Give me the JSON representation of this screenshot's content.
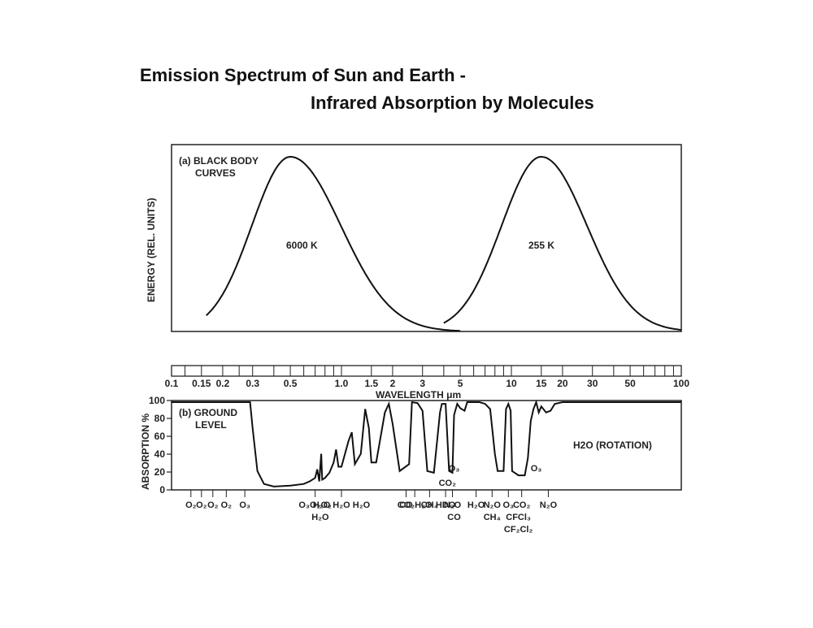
{
  "title_line1": "Emission Spectrum of Sun and Earth  -",
  "title_line2": "Infrared Absorption by Molecules",
  "chart_data": [
    {
      "type": "line",
      "panel_label": "(a) BLACK BODY",
      "panel_label2": "CURVES",
      "ylabel": "ENERGY (REL. UNITS)",
      "xscale": "log",
      "xlim": [
        0.1,
        100
      ],
      "series": [
        {
          "name": "6000 K",
          "peak_wavelength_um": 0.5,
          "peak_value": 1.0
        },
        {
          "name": "255 K",
          "peak_wavelength_um": 15,
          "peak_value": 1.0
        }
      ]
    },
    {
      "type": "line",
      "panel_label": "(b) GROUND",
      "panel_label2": "LEVEL",
      "ylabel": "ABSORPTION %",
      "xlabel": "WAVELENGTH μm",
      "xscale": "log",
      "xlim": [
        0.1,
        100
      ],
      "ylim": [
        0,
        100
      ],
      "yticks": [
        "100",
        "80",
        "60",
        "40",
        "20",
        "0"
      ],
      "xticks": [
        {
          "v": 0.1,
          "t": "0.1"
        },
        {
          "v": 0.15,
          "t": "0.15"
        },
        {
          "v": 0.2,
          "t": "0.2"
        },
        {
          "v": 0.3,
          "t": "0.3"
        },
        {
          "v": 0.5,
          "t": "0.5"
        },
        {
          "v": 1.0,
          "t": "1.0"
        },
        {
          "v": 1.5,
          "t": "1.5"
        },
        {
          "v": 2,
          "t": "2"
        },
        {
          "v": 3,
          "t": "3"
        },
        {
          "v": 5,
          "t": "5"
        },
        {
          "v": 10,
          "t": "10"
        },
        {
          "v": 15,
          "t": "15"
        },
        {
          "v": 20,
          "t": "20"
        },
        {
          "v": 30,
          "t": "30"
        },
        {
          "v": 50,
          "t": "50"
        },
        {
          "v": 100,
          "t": "100"
        }
      ],
      "annotation": "H2O (ROTATION)",
      "absorption_points": [
        [
          0.1,
          100
        ],
        [
          0.29,
          100
        ],
        [
          0.3,
          70
        ],
        [
          0.32,
          20
        ],
        [
          0.35,
          5
        ],
        [
          0.4,
          2
        ],
        [
          0.5,
          3
        ],
        [
          0.6,
          5
        ],
        [
          0.65,
          8
        ],
        [
          0.7,
          12
        ],
        [
          0.72,
          22
        ],
        [
          0.74,
          8
        ],
        [
          0.76,
          40
        ],
        [
          0.77,
          10
        ],
        [
          0.8,
          12
        ],
        [
          0.85,
          18
        ],
        [
          0.9,
          30
        ],
        [
          0.93,
          45
        ],
        [
          0.96,
          25
        ],
        [
          1.0,
          25
        ],
        [
          1.1,
          55
        ],
        [
          1.15,
          65
        ],
        [
          1.2,
          28
        ],
        [
          1.3,
          40
        ],
        [
          1.38,
          92
        ],
        [
          1.45,
          70
        ],
        [
          1.5,
          30
        ],
        [
          1.6,
          30
        ],
        [
          1.8,
          88
        ],
        [
          1.9,
          98
        ],
        [
          2.0,
          75
        ],
        [
          2.2,
          20
        ],
        [
          2.5,
          28
        ],
        [
          2.6,
          100
        ],
        [
          2.8,
          99
        ],
        [
          3.0,
          90
        ],
        [
          3.2,
          20
        ],
        [
          3.5,
          18
        ],
        [
          3.8,
          88
        ],
        [
          3.9,
          98
        ],
        [
          4.1,
          98
        ],
        [
          4.3,
          20
        ],
        [
          4.5,
          18
        ],
        [
          4.6,
          85
        ],
        [
          4.8,
          98
        ],
        [
          5.0,
          93
        ],
        [
          5.3,
          90
        ],
        [
          5.5,
          100
        ],
        [
          6.5,
          100
        ],
        [
          7.0,
          98
        ],
        [
          7.5,
          92
        ],
        [
          8.0,
          40
        ],
        [
          8.3,
          20
        ],
        [
          9.0,
          20
        ],
        [
          9.3,
          92
        ],
        [
          9.6,
          98
        ],
        [
          9.9,
          90
        ],
        [
          10.1,
          20
        ],
        [
          11.0,
          15
        ],
        [
          12.0,
          15
        ],
        [
          12.5,
          35
        ],
        [
          13.0,
          78
        ],
        [
          13.5,
          92
        ],
        [
          14.0,
          100
        ],
        [
          14.5,
          88
        ],
        [
          15.0,
          95
        ],
        [
          16.0,
          88
        ],
        [
          17.0,
          90
        ],
        [
          18.0,
          98
        ],
        [
          20.0,
          100
        ],
        [
          100,
          100
        ]
      ]
    }
  ],
  "molecule_labels": [
    {
      "v": 0.13,
      "t": "O₂"
    },
    {
      "v": 0.15,
      "t": "O₂"
    },
    {
      "v": 0.175,
      "t": "O₂"
    },
    {
      "v": 0.21,
      "t": "O₂"
    },
    {
      "v": 0.27,
      "t": "O₃"
    },
    {
      "v": 0.7,
      "t": "O₃O₂O₂"
    },
    {
      "v": 0.75,
      "t": "H₂O",
      "row": 2
    },
    {
      "v": 1.0,
      "t": "H₂O H₂O H₂O"
    },
    {
      "v": 2.4,
      "t": "CO"
    },
    {
      "v": 2.7,
      "t": "CO₂H₂O"
    },
    {
      "v": 3.3,
      "t": "CH₄"
    },
    {
      "v": 4.1,
      "t": "HDO"
    },
    {
      "v": 4.5,
      "t": "N₂O"
    },
    {
      "v": 4.6,
      "t": "CO",
      "row": 2
    },
    {
      "v": 6.2,
      "t": "H₂O"
    },
    {
      "v": 7.7,
      "t": "N₂O"
    },
    {
      "v": 7.7,
      "t": "CH₄",
      "row": 2
    },
    {
      "v": 9.6,
      "t": "O₃"
    },
    {
      "v": 11.5,
      "t": "CO₂"
    },
    {
      "v": 11.0,
      "t": "CFCl₃",
      "row": 2
    },
    {
      "v": 11.0,
      "t": "CF₂Cl₂",
      "row": 3
    },
    {
      "v": 16.5,
      "t": "N₂O"
    },
    {
      "v": 4.6,
      "t": "O₃",
      "above": true
    },
    {
      "v": 4.2,
      "t": "CO₂",
      "above": true
    },
    {
      "v": 14.0,
      "t": "O₃",
      "above": true
    }
  ]
}
